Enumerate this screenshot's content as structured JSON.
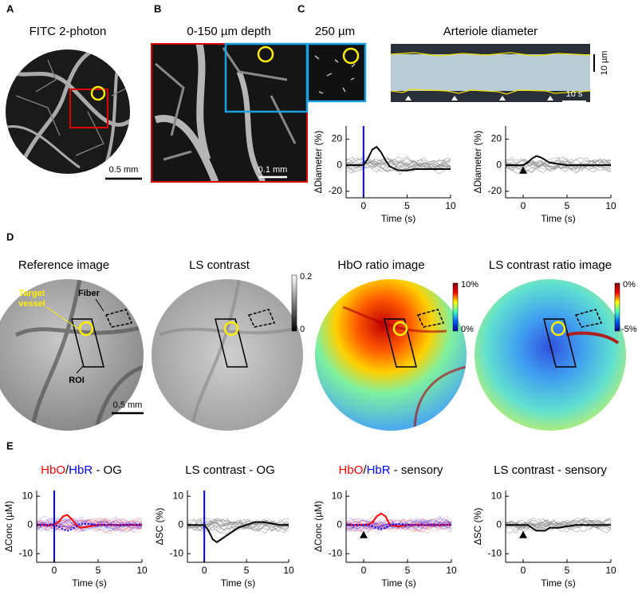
{
  "figure": {
    "panel_labels": [
      "A",
      "B",
      "C",
      "D",
      "E"
    ],
    "A": {
      "title": "FITC 2-photon",
      "scale_bar": "0.5 mm"
    },
    "B": {
      "title": "0-150 µm depth",
      "scale_bar": "0.1 mm"
    },
    "C": {
      "inset_title": "250 µm",
      "kymo_title": "Arteriole diameter",
      "kymo_scale_y": "10 µm",
      "kymo_scale_x": "10 s"
    },
    "D": {
      "titles": [
        "Reference image",
        "LS contrast",
        "HbO ratio image",
        "LS contrast ratio image"
      ],
      "annotations": {
        "fiber": "Fiber",
        "target": [
          "Target",
          "vessel"
        ],
        "roi": "ROI",
        "scale_bar": "0.5 mm"
      },
      "colorbars": [
        [
          "0.2",
          "0"
        ],
        [
          "10%",
          "0%"
        ],
        [
          "0%",
          "-5%"
        ]
      ]
    }
  },
  "chart_data": [
    {
      "type": "line",
      "ylabel": "ΔDiameter (%)",
      "xlabel": "Time (s)",
      "x": [
        -2,
        -1,
        0,
        0.5,
        1,
        1.5,
        2,
        2.5,
        3,
        4,
        5,
        6,
        7,
        8,
        9,
        10
      ],
      "series": [
        {
          "color": "#000000",
          "values": [
            0,
            0,
            0,
            5,
            12,
            14,
            10,
            4,
            -1,
            -4,
            -4,
            -3,
            -3,
            -3,
            -3,
            -3
          ]
        }
      ],
      "xlim": [
        -2,
        10
      ],
      "ylim": [
        -25,
        30
      ],
      "xticks": [
        0,
        5,
        10
      ],
      "yticks": [
        20,
        0,
        -20
      ],
      "stimulus": {
        "x": 0,
        "style": "line",
        "color": "#0000ff"
      }
    },
    {
      "type": "line",
      "ylabel": "ΔDiameter (%)",
      "xlabel": "Time (s)",
      "x": [
        -2,
        -1,
        0,
        0.5,
        1,
        1.5,
        2,
        2.5,
        3,
        4,
        5,
        6,
        7,
        8,
        9,
        10
      ],
      "series": [
        {
          "color": "#000000",
          "values": [
            0,
            0,
            0,
            2,
            5,
            7,
            6,
            4,
            2,
            1,
            0,
            0,
            0,
            0,
            0,
            0
          ]
        }
      ],
      "xlim": [
        -2,
        10
      ],
      "ylim": [
        -25,
        30
      ],
      "xticks": [
        0,
        5,
        10
      ],
      "yticks": [
        20,
        0,
        -20
      ],
      "stimulus": {
        "x": 0,
        "style": "triangle",
        "color": "#000000"
      }
    },
    {
      "type": "line",
      "title_parts": [
        "HbO",
        "/",
        "HbR",
        " - OG"
      ],
      "title_colors": [
        "#ff0000",
        "#000000",
        "#0000ff",
        "#000000"
      ],
      "ylabel": "ΔConc (µM)",
      "xlabel": "Time (s)",
      "x": [
        -2,
        -1,
        0,
        0.5,
        1,
        1.5,
        2,
        2.5,
        3,
        4,
        5,
        6,
        7,
        8,
        9,
        10
      ],
      "series": [
        {
          "color": "#ff0000",
          "values": [
            0,
            0,
            0,
            1,
            3,
            3.5,
            2,
            0,
            -1,
            -0.5,
            0,
            0,
            0,
            0,
            0,
            0
          ]
        },
        {
          "color": "#0000ff",
          "dashed": true,
          "values": [
            0,
            0,
            0,
            -0.5,
            -1.5,
            -2,
            -1.5,
            -0.5,
            0.5,
            0.3,
            0,
            0,
            0,
            0,
            0,
            0
          ]
        }
      ],
      "xlim": [
        -2,
        10
      ],
      "ylim": [
        -13,
        12
      ],
      "xticks": [
        0,
        5,
        10
      ],
      "yticks": [
        10,
        0,
        -10
      ],
      "stimulus": {
        "x": 0,
        "style": "line",
        "color": "#0000ff"
      }
    },
    {
      "type": "line",
      "title_parts": [
        "LS contrast - OG"
      ],
      "title_colors": [
        "#000000"
      ],
      "ylabel": "ΔSC (%)",
      "xlabel": "Time (s)",
      "x": [
        -2,
        -1,
        0,
        0.5,
        1,
        1.5,
        2,
        2.5,
        3,
        4,
        5,
        6,
        7,
        8,
        9,
        10
      ],
      "series": [
        {
          "color": "#000000",
          "values": [
            0,
            0,
            0,
            -2,
            -5,
            -6,
            -5,
            -4,
            -3,
            -1,
            0,
            1,
            1,
            0.5,
            0,
            0
          ]
        }
      ],
      "xlim": [
        -2,
        10
      ],
      "ylim": [
        -13,
        12
      ],
      "xticks": [
        0,
        5,
        10
      ],
      "yticks": [
        10,
        0,
        -10
      ],
      "stimulus": {
        "x": 0,
        "style": "line",
        "color": "#0000ff"
      }
    },
    {
      "type": "line",
      "title_parts": [
        "HbO",
        "/",
        "HbR",
        " - sensory"
      ],
      "title_colors": [
        "#ff0000",
        "#000000",
        "#0000ff",
        "#000000"
      ],
      "ylabel": "ΔConc (µM)",
      "xlabel": "Time (s)",
      "x": [
        -2,
        -1,
        0,
        0.5,
        1,
        1.5,
        2,
        2.5,
        3,
        4,
        5,
        6,
        7,
        8,
        9,
        10
      ],
      "series": [
        {
          "color": "#ff0000",
          "values": [
            0,
            0,
            0,
            0,
            1,
            3,
            4,
            3,
            0,
            -0.5,
            0,
            0,
            0,
            0,
            0,
            0
          ]
        },
        {
          "color": "#0000ff",
          "dashed": true,
          "values": [
            0,
            0,
            0,
            0,
            -0.5,
            -1,
            -1.5,
            -1,
            0,
            0.3,
            0,
            0,
            0,
            0,
            0,
            0
          ]
        }
      ],
      "xlim": [
        -2,
        10
      ],
      "ylim": [
        -13,
        12
      ],
      "xticks": [
        0,
        5,
        10
      ],
      "yticks": [
        10,
        0,
        -10
      ],
      "stimulus": {
        "x": 0,
        "style": "triangle",
        "color": "#000000"
      }
    },
    {
      "type": "line",
      "title_parts": [
        "LS contrast - sensory"
      ],
      "title_colors": [
        "#000000"
      ],
      "ylabel": "ΔSC (%)",
      "xlabel": "Time (s)",
      "x": [
        -2,
        -1,
        0,
        0.5,
        1,
        1.5,
        2,
        2.5,
        3,
        4,
        5,
        6,
        7,
        8,
        9,
        10
      ],
      "series": [
        {
          "color": "#000000",
          "values": [
            0,
            0,
            0,
            0,
            -1,
            -2,
            -2,
            -2,
            -1,
            -1,
            -0.5,
            0,
            0,
            0,
            0,
            0
          ]
        }
      ],
      "xlim": [
        -2,
        10
      ],
      "ylim": [
        -13,
        12
      ],
      "xticks": [
        0,
        5,
        10
      ],
      "yticks": [
        10,
        0,
        -10
      ],
      "stimulus": {
        "x": 0,
        "style": "triangle",
        "color": "#000000"
      }
    }
  ]
}
